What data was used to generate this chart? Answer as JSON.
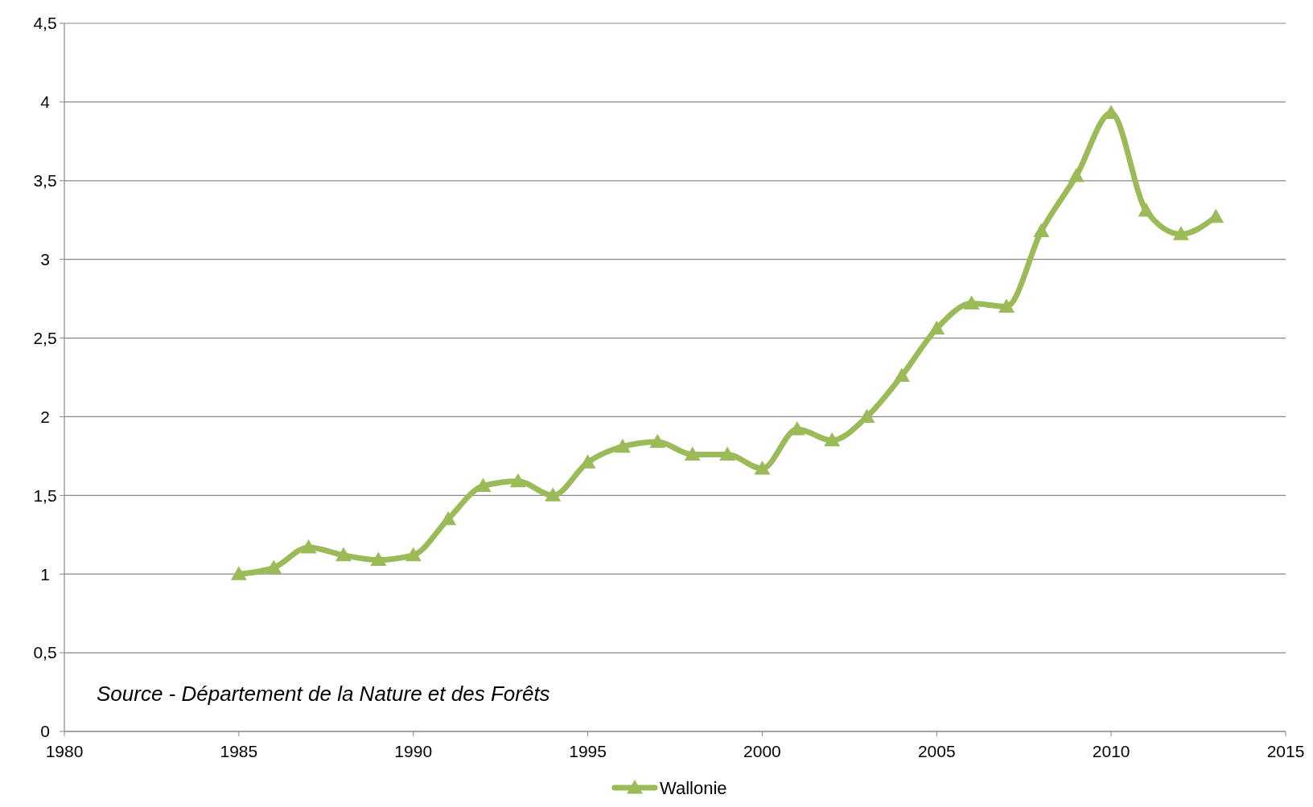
{
  "chart_data": {
    "type": "line",
    "x": [
      1985,
      1986,
      1987,
      1988,
      1989,
      1990,
      1991,
      1992,
      1993,
      1994,
      1995,
      1996,
      1997,
      1998,
      1999,
      2000,
      2001,
      2002,
      2003,
      2004,
      2005,
      2006,
      2007,
      2008,
      2009,
      2010,
      2011,
      2012,
      2013
    ],
    "series": [
      {
        "name": "Wallonie",
        "color": "#9bbb59",
        "values": [
          1.0,
          1.04,
          1.17,
          1.12,
          1.09,
          1.12,
          1.35,
          1.56,
          1.59,
          1.5,
          1.71,
          1.81,
          1.84,
          1.76,
          1.76,
          1.67,
          1.92,
          1.85,
          2.0,
          2.26,
          2.56,
          2.72,
          2.7,
          3.18,
          3.53,
          3.93,
          3.31,
          3.16,
          3.27
        ]
      }
    ],
    "xlim": [
      1980,
      2015
    ],
    "xticks": [
      1980,
      1985,
      1990,
      1995,
      2000,
      2005,
      2010,
      2015
    ],
    "ylim": [
      0,
      4.5
    ],
    "yticks": [
      0,
      {
        "value": 0.5,
        "label": "0,5"
      },
      1,
      {
        "value": 1.5,
        "label": "1,5"
      },
      2,
      {
        "value": 2.5,
        "label": "2,5"
      },
      3,
      {
        "value": 3.5,
        "label": "3,5"
      },
      4,
      {
        "value": 4.5,
        "label": "4,5"
      }
    ],
    "grid": "y",
    "legend": "bottom",
    "marker": "triangle",
    "line_style": "solid",
    "annotations": [
      "Source - Département de la Nature et des Forêts"
    ]
  }
}
